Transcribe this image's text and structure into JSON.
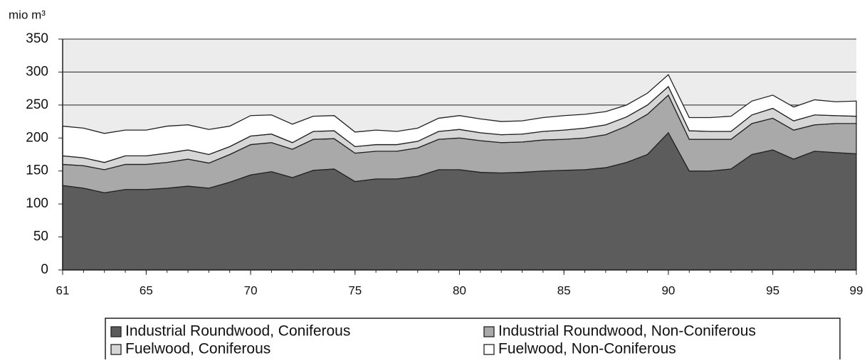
{
  "chart_data": {
    "type": "stacked_area",
    "y_axis_label": "mio m³",
    "x": [
      61,
      62,
      63,
      64,
      65,
      66,
      67,
      68,
      69,
      70,
      71,
      72,
      73,
      74,
      75,
      76,
      77,
      78,
      79,
      80,
      81,
      82,
      83,
      84,
      85,
      86,
      87,
      88,
      89,
      90,
      91,
      92,
      93,
      94,
      95,
      96,
      97,
      98,
      99
    ],
    "xlim": [
      61,
      99
    ],
    "xticks": [
      61,
      65,
      70,
      75,
      80,
      85,
      90,
      95,
      99
    ],
    "ylim": [
      0,
      350
    ],
    "yticks": [
      0,
      50,
      100,
      150,
      200,
      250,
      300,
      350
    ],
    "grid": true,
    "legend": "bottom",
    "series": [
      {
        "name": "Industrial Roundwood, Coniferous",
        "color": "#5c5c5c",
        "values": [
          128,
          124,
          117,
          122,
          122,
          124,
          127,
          124,
          133,
          144,
          149,
          140,
          151,
          153,
          134,
          138,
          138,
          142,
          152,
          152,
          148,
          147,
          148,
          150,
          151,
          152,
          155,
          163,
          175,
          208,
          150,
          150,
          153,
          175,
          182,
          168,
          180,
          178,
          176
        ]
      },
      {
        "name": "Industrial Roundwood, Non-Coniferous",
        "color": "#a9a9a9",
        "values": [
          32,
          34,
          35,
          38,
          38,
          39,
          41,
          38,
          42,
          46,
          44,
          43,
          47,
          46,
          43,
          42,
          42,
          43,
          46,
          48,
          48,
          46,
          46,
          47,
          47,
          48,
          50,
          55,
          61,
          57,
          48,
          48,
          45,
          47,
          48,
          44,
          40,
          44,
          46
        ]
      },
      {
        "name": "Fuelwood, Coniferous",
        "color": "#d6d6d6",
        "values": [
          13,
          12,
          11,
          13,
          13,
          14,
          14,
          13,
          12,
          13,
          13,
          10,
          12,
          12,
          10,
          10,
          10,
          10,
          12,
          13,
          12,
          12,
          12,
          13,
          14,
          15,
          15,
          14,
          14,
          13,
          13,
          12,
          12,
          13,
          15,
          14,
          15,
          12,
          11
        ]
      },
      {
        "name": "Fuelwood, Non-Coniferous",
        "color": "#ffffff",
        "values": [
          45,
          45,
          44,
          39,
          39,
          41,
          38,
          38,
          31,
          31,
          29,
          28,
          23,
          23,
          22,
          22,
          20,
          20,
          20,
          21,
          21,
          20,
          20,
          21,
          22,
          21,
          20,
          18,
          18,
          18,
          20,
          21,
          23,
          21,
          20,
          21,
          23,
          21,
          23
        ]
      }
    ]
  }
}
